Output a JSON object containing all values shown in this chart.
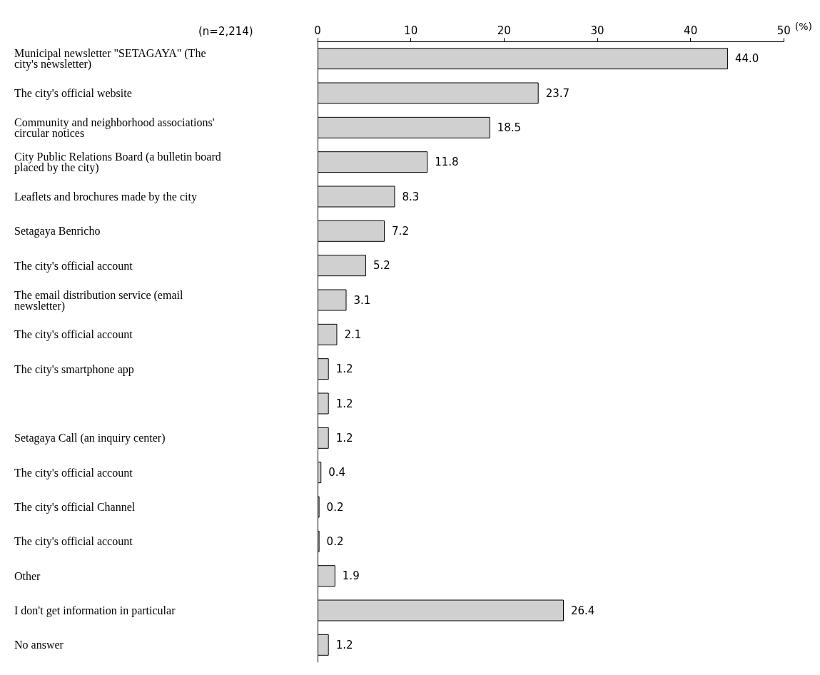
{
  "chart_data": {
    "type": "bar",
    "orientation": "horizontal",
    "xlabel": "(%)",
    "annotations": [
      "(n=2,214)"
    ],
    "categories": [
      "Municipal newsletter \"SETAGAYA\" (The city's newsletter)",
      "The city's official website",
      "Community and neighborhood associations' circular notices",
      "City Public Relations Board (a bulletin board placed by the city)",
      "Leaflets and brochures made by the city",
      "Setagaya Benricho",
      "The city's official account",
      "The email distribution service (email newsletter)",
      "The city's official account",
      "The city's smartphone app",
      null,
      "Setagaya Call (an inquiry center)",
      "The city's official account",
      "The city's official Channel",
      "The city's official account",
      "Other",
      "I don't get information in particular",
      "No answer"
    ],
    "values": [
      44.0,
      23.7,
      18.5,
      11.8,
      8.3,
      7.2,
      5.2,
      3.1,
      2.1,
      1.2,
      1.2,
      1.2,
      0.4,
      0.2,
      0.2,
      1.9,
      26.4,
      1.2
    ],
    "value_labels": [
      "44.0",
      "23.7",
      "18.5",
      "11.8",
      "8.3",
      "7.2",
      "5.2",
      "3.1",
      "2.1",
      "1.2",
      "1.2",
      "1.2",
      "0.4",
      "0.2",
      "0.2",
      "1.9",
      "26.4",
      "1.2"
    ],
    "color": "#d0d0d0",
    "xlim": [
      0,
      50
    ],
    "xticks": [
      0,
      10,
      20,
      30,
      40,
      50
    ],
    "grid": false
  }
}
